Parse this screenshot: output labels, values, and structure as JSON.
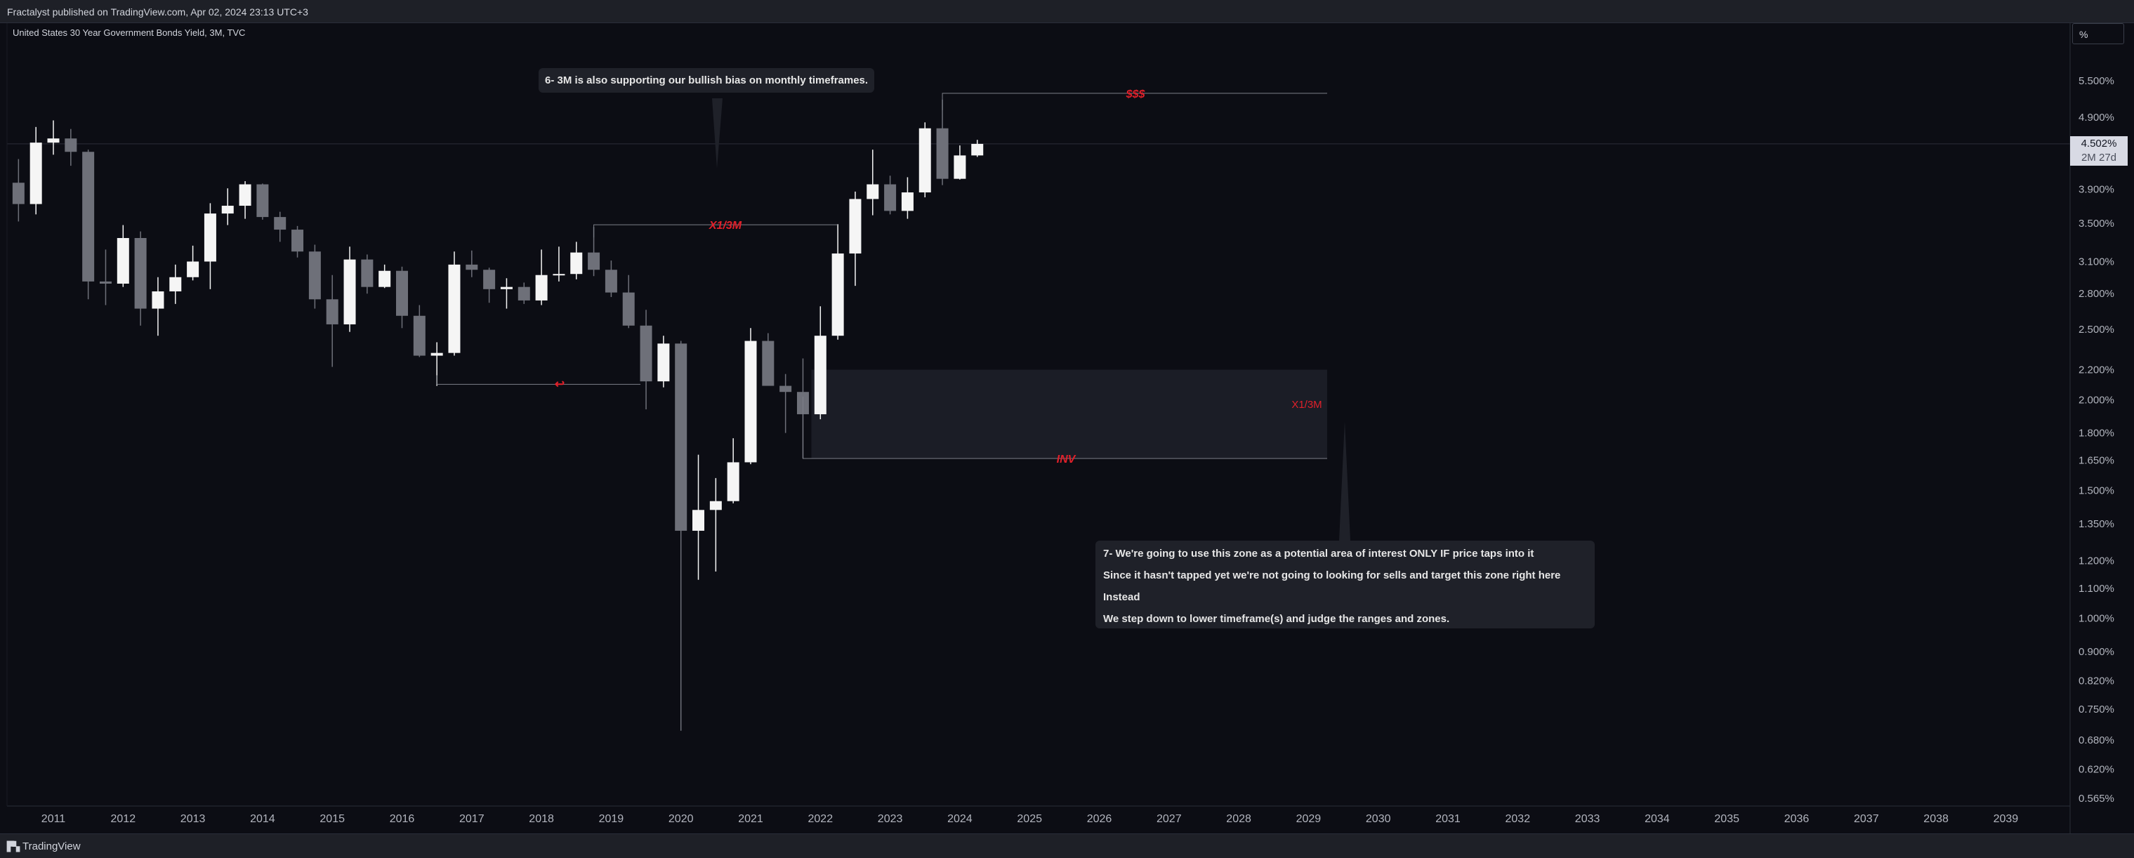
{
  "header": {
    "published_text": "Fractalyst published on TradingView.com, Apr 02, 2024 23:13 UTC+3"
  },
  "footer": {
    "brand": "TradingView"
  },
  "chart_controls": {
    "percent_button": "%"
  },
  "price_label": {
    "value": "4.502%",
    "countdown": "2M 27d"
  },
  "colors": {
    "background": "#0c0d14",
    "bull": "#f5f5f5",
    "bear": "#6e7079",
    "annotation_red": "#e0202a",
    "zone": "#1b1d26"
  },
  "chart_data": {
    "type": "candlestick",
    "title": "United States 30 Year Government Bonds Yield, 3M, TVC",
    "y_scale": "log",
    "y_ticks": [
      "5.500%",
      "4.900%",
      "3.900%",
      "3.500%",
      "3.100%",
      "2.800%",
      "2.500%",
      "2.200%",
      "2.000%",
      "1.800%",
      "1.650%",
      "1.500%",
      "1.350%",
      "1.200%",
      "1.100%",
      "1.000%",
      "0.900%",
      "0.820%",
      "0.750%",
      "0.680%",
      "0.620%",
      "0.565%"
    ],
    "x_ticks": [
      "2011",
      "2012",
      "2013",
      "2014",
      "2015",
      "2016",
      "2017",
      "2018",
      "2019",
      "2020",
      "2021",
      "2022",
      "2023",
      "2024",
      "2025",
      "2026",
      "2027",
      "2028",
      "2029",
      "2030",
      "2031",
      "2032",
      "2033",
      "2034",
      "2035",
      "2036",
      "2037",
      "2038",
      "2039"
    ],
    "last_value": 4.502,
    "candles": [
      {
        "t": "2010-07",
        "o": 3.98,
        "h": 4.29,
        "l": 3.52,
        "c": 3.72
      },
      {
        "t": "2010-10",
        "o": 3.72,
        "h": 4.75,
        "l": 3.6,
        "c": 4.52
      },
      {
        "t": "2011-01",
        "o": 4.52,
        "h": 4.85,
        "l": 4.35,
        "c": 4.58
      },
      {
        "t": "2011-04",
        "o": 4.58,
        "h": 4.72,
        "l": 4.2,
        "c": 4.39
      },
      {
        "t": "2011-07",
        "o": 4.39,
        "h": 4.42,
        "l": 2.75,
        "c": 2.91
      },
      {
        "t": "2011-10",
        "o": 2.91,
        "h": 3.22,
        "l": 2.7,
        "c": 2.89
      },
      {
        "t": "2012-01",
        "o": 2.89,
        "h": 3.48,
        "l": 2.86,
        "c": 3.34
      },
      {
        "t": "2012-04",
        "o": 3.34,
        "h": 3.41,
        "l": 2.53,
        "c": 2.67
      },
      {
        "t": "2012-07",
        "o": 2.67,
        "h": 2.95,
        "l": 2.45,
        "c": 2.82
      },
      {
        "t": "2012-10",
        "o": 2.82,
        "h": 3.07,
        "l": 2.71,
        "c": 2.95
      },
      {
        "t": "2013-01",
        "o": 2.95,
        "h": 3.26,
        "l": 2.92,
        "c": 3.1
      },
      {
        "t": "2013-04",
        "o": 3.1,
        "h": 3.73,
        "l": 2.84,
        "c": 3.61
      },
      {
        "t": "2013-07",
        "o": 3.61,
        "h": 3.91,
        "l": 3.48,
        "c": 3.7
      },
      {
        "t": "2013-10",
        "o": 3.7,
        "h": 4.0,
        "l": 3.55,
        "c": 3.96
      },
      {
        "t": "2014-01",
        "o": 3.96,
        "h": 3.97,
        "l": 3.54,
        "c": 3.57
      },
      {
        "t": "2014-04",
        "o": 3.57,
        "h": 3.63,
        "l": 3.3,
        "c": 3.43
      },
      {
        "t": "2014-07",
        "o": 3.43,
        "h": 3.47,
        "l": 3.14,
        "c": 3.2
      },
      {
        "t": "2014-10",
        "o": 3.2,
        "h": 3.27,
        "l": 2.67,
        "c": 2.75
      },
      {
        "t": "2015-01",
        "o": 2.75,
        "h": 2.97,
        "l": 2.22,
        "c": 2.54
      },
      {
        "t": "2015-04",
        "o": 2.54,
        "h": 3.25,
        "l": 2.48,
        "c": 3.12
      },
      {
        "t": "2015-07",
        "o": 3.12,
        "h": 3.17,
        "l": 2.8,
        "c": 2.86
      },
      {
        "t": "2015-10",
        "o": 2.86,
        "h": 3.07,
        "l": 2.85,
        "c": 3.01
      },
      {
        "t": "2016-01",
        "o": 3.01,
        "h": 3.05,
        "l": 2.51,
        "c": 2.61
      },
      {
        "t": "2016-04",
        "o": 2.61,
        "h": 2.7,
        "l": 2.29,
        "c": 2.3
      },
      {
        "t": "2016-07",
        "o": 2.3,
        "h": 2.4,
        "l": 2.09,
        "c": 2.32
      },
      {
        "t": "2016-10",
        "o": 2.32,
        "h": 3.2,
        "l": 2.3,
        "c": 3.07
      },
      {
        "t": "2017-01",
        "o": 3.07,
        "h": 3.21,
        "l": 2.95,
        "c": 3.02
      },
      {
        "t": "2017-04",
        "o": 3.02,
        "h": 3.04,
        "l": 2.72,
        "c": 2.84
      },
      {
        "t": "2017-07",
        "o": 2.84,
        "h": 2.94,
        "l": 2.67,
        "c": 2.86
      },
      {
        "t": "2017-10",
        "o": 2.86,
        "h": 2.9,
        "l": 2.71,
        "c": 2.74
      },
      {
        "t": "2018-01",
        "o": 2.74,
        "h": 3.22,
        "l": 2.7,
        "c": 2.97
      },
      {
        "t": "2018-04",
        "o": 2.97,
        "h": 3.25,
        "l": 2.91,
        "c": 2.98
      },
      {
        "t": "2018-07",
        "o": 2.98,
        "h": 3.3,
        "l": 2.93,
        "c": 3.19
      },
      {
        "t": "2018-10",
        "o": 3.19,
        "h": 3.46,
        "l": 2.96,
        "c": 3.02
      },
      {
        "t": "2019-01",
        "o": 3.02,
        "h": 3.11,
        "l": 2.77,
        "c": 2.81
      },
      {
        "t": "2019-04",
        "o": 2.81,
        "h": 2.97,
        "l": 2.51,
        "c": 2.53
      },
      {
        "t": "2019-07",
        "o": 2.53,
        "h": 2.66,
        "l": 1.94,
        "c": 2.12
      },
      {
        "t": "2019-10",
        "o": 2.12,
        "h": 2.45,
        "l": 2.08,
        "c": 2.39
      },
      {
        "t": "2020-01",
        "o": 2.39,
        "h": 2.41,
        "l": 0.7,
        "c": 1.32
      },
      {
        "t": "2020-04",
        "o": 1.32,
        "h": 1.68,
        "l": 1.13,
        "c": 1.41
      },
      {
        "t": "2020-07",
        "o": 1.41,
        "h": 1.56,
        "l": 1.16,
        "c": 1.45
      },
      {
        "t": "2020-10",
        "o": 1.45,
        "h": 1.77,
        "l": 1.44,
        "c": 1.64
      },
      {
        "t": "2021-01",
        "o": 1.64,
        "h": 2.51,
        "l": 1.63,
        "c": 2.41
      },
      {
        "t": "2021-04",
        "o": 2.41,
        "h": 2.47,
        "l": 2.11,
        "c": 2.09
      },
      {
        "t": "2021-07",
        "o": 2.09,
        "h": 2.17,
        "l": 1.8,
        "c": 2.05
      },
      {
        "t": "2021-10",
        "o": 2.05,
        "h": 2.28,
        "l": 1.66,
        "c": 1.91
      },
      {
        "t": "2022-01",
        "o": 1.91,
        "h": 2.69,
        "l": 1.88,
        "c": 2.45
      },
      {
        "t": "2022-04",
        "o": 2.45,
        "h": 3.49,
        "l": 2.42,
        "c": 3.18
      },
      {
        "t": "2022-07",
        "o": 3.18,
        "h": 3.87,
        "l": 2.87,
        "c": 3.78
      },
      {
        "t": "2022-10",
        "o": 3.78,
        "h": 4.42,
        "l": 3.59,
        "c": 3.96
      },
      {
        "t": "2023-01",
        "o": 3.96,
        "h": 4.07,
        "l": 3.6,
        "c": 3.64
      },
      {
        "t": "2023-04",
        "o": 3.64,
        "h": 4.05,
        "l": 3.55,
        "c": 3.86
      },
      {
        "t": "2023-07",
        "o": 3.86,
        "h": 4.82,
        "l": 3.8,
        "c": 4.73
      },
      {
        "t": "2023-10",
        "o": 4.73,
        "h": 5.18,
        "l": 3.95,
        "c": 4.03
      },
      {
        "t": "2024-01",
        "o": 4.03,
        "h": 4.48,
        "l": 4.02,
        "c": 4.34
      },
      {
        "t": "2024-04",
        "o": 4.34,
        "h": 4.56,
        "l": 4.32,
        "c": 4.502
      }
    ]
  },
  "annotations": {
    "liquidity_label": "$$$",
    "x13m_upper": "X1/3M",
    "swing_low_symbol": "↩",
    "zone_label": "X1/3M",
    "inv_label": "INV",
    "callout_6": "6- 3M is also supporting our bullish bias on monthly timeframes.",
    "callout_7": [
      "7- We're going to use this zone as a potential area of interest ONLY IF price taps into it",
      "Since it hasn't tapped yet we're not going to looking for sells and target this zone right here",
      "Instead",
      "We step down to lower timeframe(s) and judge the ranges and zones."
    ]
  }
}
